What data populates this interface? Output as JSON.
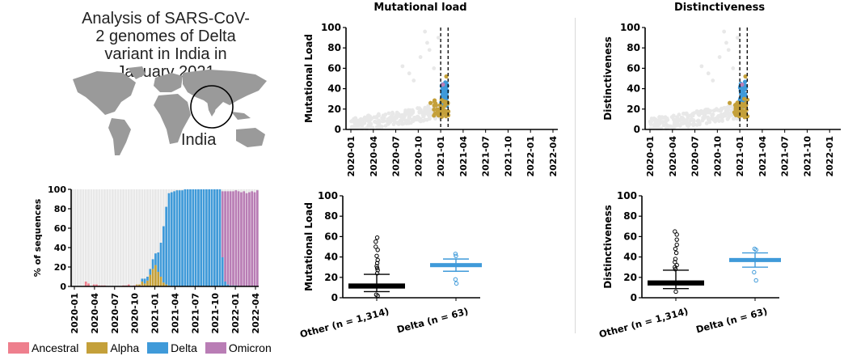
{
  "panel_title": "Analysis of SARS-CoV-2 genomes of Delta variant in India in January 2021",
  "map_label": "India",
  "colors": {
    "ancestral": "#ee7f8d",
    "alpha": "#c4a03a",
    "delta": "#3f9ad9",
    "omicron": "#b97db5",
    "other": "#e8e8e8"
  },
  "legend": [
    {
      "name": "Ancestral",
      "color": "#ee7f8d"
    },
    {
      "name": "Alpha",
      "color": "#c4a03a"
    },
    {
      "name": "Delta",
      "color": "#3f9ad9"
    },
    {
      "name": "Omicron",
      "color": "#b97db5"
    }
  ],
  "chart_data": [
    {
      "type": "bar",
      "ylabel": "% of sequences",
      "ylim": [
        0,
        100
      ],
      "yticks": [
        "0",
        "20",
        "40",
        "60",
        "80",
        "100"
      ],
      "x_tick_labels": [
        "2020-01",
        "2020-04",
        "2020-07",
        "2020-10",
        "2021-01",
        "2021-04",
        "2021-07",
        "2021-10",
        "2022-01",
        "2022-04"
      ],
      "series": [
        {
          "name": "Ancestral",
          "values": [
            0,
            0,
            0,
            0,
            0,
            5,
            3,
            0,
            2,
            2,
            1,
            1,
            1,
            0,
            0,
            0,
            0,
            0,
            0,
            1,
            1,
            2,
            0,
            1,
            1,
            0,
            1,
            0,
            0,
            0,
            0,
            0,
            0,
            0,
            0,
            0,
            0,
            0,
            0,
            0,
            0,
            0,
            0,
            0,
            0,
            0,
            0,
            0,
            0,
            0,
            0,
            0,
            0,
            0,
            0,
            0,
            0,
            0,
            0,
            0,
            0,
            0,
            0,
            0,
            0,
            0,
            0,
            0,
            0,
            0
          ]
        },
        {
          "name": "Alpha",
          "values": [
            0,
            0,
            0,
            0,
            0,
            0,
            0,
            0,
            0,
            0,
            0,
            0,
            0,
            0,
            0,
            0,
            0,
            0,
            0,
            0,
            0,
            0,
            0,
            0,
            1,
            2,
            4,
            3,
            6,
            12,
            18,
            22,
            15,
            10,
            4,
            2,
            1,
            0,
            0,
            0,
            0,
            0,
            0,
            0,
            0,
            0,
            0,
            0,
            0,
            0,
            0,
            0,
            0,
            0,
            0,
            0,
            0,
            0,
            0,
            0,
            0,
            0,
            0,
            0,
            0,
            0,
            0,
            0,
            0,
            0
          ]
        },
        {
          "name": "Delta",
          "values": [
            0,
            0,
            0,
            0,
            0,
            0,
            0,
            0,
            0,
            0,
            0,
            0,
            0,
            0,
            0,
            0,
            0,
            0,
            0,
            0,
            0,
            0,
            0,
            0,
            0,
            0,
            3,
            5,
            4,
            6,
            10,
            12,
            20,
            35,
            58,
            80,
            95,
            97,
            98,
            99,
            99,
            99,
            100,
            100,
            100,
            100,
            100,
            100,
            100,
            100,
            100,
            100,
            100,
            100,
            100,
            100,
            30,
            5,
            2,
            1,
            1,
            1,
            0,
            0,
            0,
            0,
            0,
            0,
            0,
            0
          ]
        },
        {
          "name": "Omicron",
          "values": [
            0,
            0,
            0,
            0,
            0,
            0,
            0,
            0,
            0,
            0,
            0,
            0,
            0,
            0,
            0,
            0,
            0,
            0,
            0,
            0,
            0,
            0,
            0,
            0,
            0,
            0,
            0,
            0,
            0,
            0,
            0,
            0,
            0,
            0,
            0,
            0,
            0,
            0,
            0,
            0,
            0,
            0,
            0,
            0,
            0,
            0,
            0,
            0,
            0,
            0,
            0,
            0,
            0,
            0,
            0,
            0,
            68,
            93,
            96,
            97,
            97,
            98,
            98,
            97,
            98,
            96,
            97,
            98,
            97,
            99
          ]
        }
      ]
    },
    {
      "type": "scatter",
      "title": "Mutational load",
      "ylabel": "Mutational Load",
      "ylim": [
        0,
        100
      ],
      "yticks": [
        "0",
        "20",
        "40",
        "60",
        "80",
        "100"
      ],
      "x_tick_labels": [
        "2020-01",
        "2020-04",
        "2020-07",
        "2020-10",
        "2021-01",
        "2021-04",
        "2021-07",
        "2021-10",
        "2022-01",
        "2022-04"
      ],
      "dashed_lines_x": [
        "2021-01-01",
        "2021-01-31"
      ]
    },
    {
      "type": "box",
      "ylabel": "Mutational Load",
      "ylim": [
        0,
        100
      ],
      "yticks": [
        "0",
        "20",
        "40",
        "60",
        "80",
        "100"
      ],
      "categories": [
        "Other (n = 1,314)",
        "Delta (n = 63)"
      ],
      "boxes": [
        {
          "q1": 9,
          "median": 12,
          "q3": 14,
          "whisker_low": 6,
          "whisker_high": 23,
          "outliers": [
            24,
            27,
            29,
            31,
            34,
            37,
            41,
            47,
            50,
            55,
            59,
            2,
            3
          ]
        },
        {
          "q1": 30,
          "median": 32,
          "q3": 34,
          "whisker_low": 26,
          "whisker_high": 38,
          "outliers": [
            14,
            18,
            41,
            43
          ]
        }
      ]
    },
    {
      "type": "scatter",
      "title": "Distinctiveness",
      "ylabel": "Distinctiveness",
      "ylim": [
        0,
        100
      ],
      "yticks": [
        "0",
        "20",
        "40",
        "60",
        "80",
        "100"
      ],
      "x_tick_labels": [
        "2020-01",
        "2020-04",
        "2020-07",
        "2020-10",
        "2021-01",
        "2021-04",
        "2021-07",
        "2021-10",
        "2022-01",
        "2022-04"
      ],
      "dashed_lines_x": [
        "2021-01-01",
        "2021-01-31"
      ]
    },
    {
      "type": "box",
      "ylabel": "Distinctiveness",
      "ylim": [
        0,
        100
      ],
      "yticks": [
        "0",
        "20",
        "40",
        "60",
        "80",
        "100"
      ],
      "categories": [
        "Other (n = 1,314)",
        "Delta (n = 63)"
      ],
      "boxes": [
        {
          "q1": 12,
          "median": 15,
          "q3": 17,
          "whisker_low": 9,
          "whisker_high": 27,
          "outliers": [
            28,
            30,
            32,
            35,
            38,
            44,
            48,
            52,
            57,
            62,
            65,
            6
          ]
        },
        {
          "q1": 35,
          "median": 37,
          "q3": 39,
          "whisker_low": 30,
          "whisker_high": 44,
          "outliers": [
            17,
            25,
            47,
            48
          ]
        }
      ]
    }
  ]
}
